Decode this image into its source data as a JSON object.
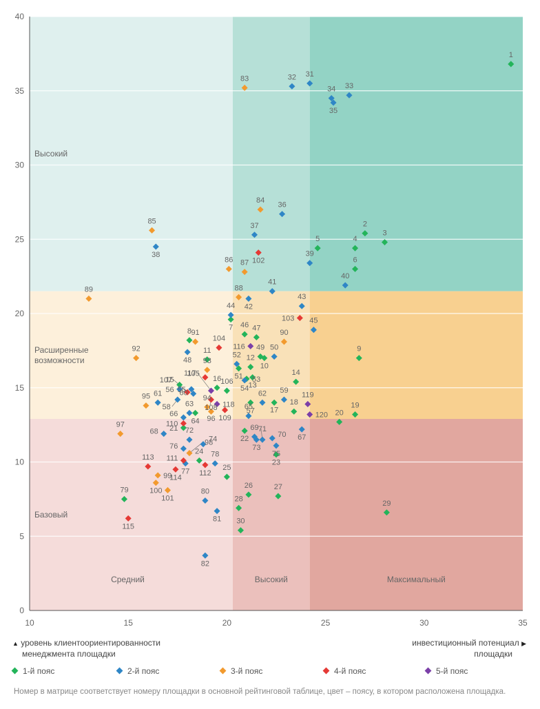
{
  "chart_data": {
    "type": "scatter",
    "x_axis": {
      "min": 10,
      "max": 35,
      "ticks": [
        10,
        15,
        20,
        25,
        30,
        35
      ]
    },
    "y_axis": {
      "min": 0,
      "max": 40,
      "ticks": [
        0,
        5,
        10,
        15,
        20,
        25,
        30,
        35,
        40
      ]
    },
    "x_bands": [
      20.3,
      24.2
    ],
    "y_bands": [
      12.9,
      21.5
    ],
    "zone_colors": {
      "r0": [
        "#dff0ee",
        "#b6e0d7",
        "#93d3c5"
      ],
      "r1": [
        "#fdf0db",
        "#f9e1b8",
        "#f8d090"
      ],
      "r2": [
        "#f5dcda",
        "#ebc0bc",
        "#e1a79f"
      ]
    },
    "row_labels": [
      {
        "text": "Высокий"
      },
      {
        "text": "Расширенные возможности"
      },
      {
        "text": "Базовый"
      }
    ],
    "column_labels": [
      "Средний",
      "Высокий",
      "Максимальный"
    ],
    "x_label": "инвестиционный потенциал площадки",
    "y_label": "уровень клиентоориентированности менеджмента площадки",
    "series": [
      {
        "name": "1-й пояс",
        "color": "#23b45a",
        "points": [
          {
            "id": "1",
            "x": 34.4,
            "y": 36.8
          },
          {
            "id": "2",
            "x": 27.0,
            "y": 25.4
          },
          {
            "id": "3",
            "x": 28.0,
            "y": 24.8
          },
          {
            "id": "4",
            "x": 26.5,
            "y": 24.4
          },
          {
            "id": "5",
            "x": 24.6,
            "y": 24.4
          },
          {
            "id": "6",
            "x": 26.5,
            "y": 23.0
          },
          {
            "id": "7",
            "x": 20.2,
            "y": 19.6
          },
          {
            "id": "8",
            "x": 18.1,
            "y": 18.2
          },
          {
            "id": "9",
            "x": 26.7,
            "y": 17.0
          },
          {
            "id": "10",
            "x": 21.9,
            "y": 17.0
          },
          {
            "id": "11",
            "x": 19.0,
            "y": 16.9
          },
          {
            "id": "12",
            "x": 21.2,
            "y": 16.4
          },
          {
            "id": "13",
            "x": 21.3,
            "y": 15.7
          },
          {
            "id": "14",
            "x": 23.5,
            "y": 15.4
          },
          {
            "id": "15",
            "x": 17.6,
            "y": 15.2
          },
          {
            "id": "16",
            "x": 19.5,
            "y": 15.0
          },
          {
            "id": "17",
            "x": 22.4,
            "y": 14.0
          },
          {
            "id": "18",
            "x": 23.4,
            "y": 13.4
          },
          {
            "id": "19",
            "x": 26.5,
            "y": 13.2
          },
          {
            "id": "20",
            "x": 25.7,
            "y": 12.7
          },
          {
            "id": "21",
            "x": 17.8,
            "y": 12.3
          },
          {
            "id": "22",
            "x": 20.9,
            "y": 12.1
          },
          {
            "id": "23",
            "x": 22.5,
            "y": 10.5
          },
          {
            "id": "24",
            "x": 18.6,
            "y": 10.1
          },
          {
            "id": "25",
            "x": 20.0,
            "y": 9.0
          },
          {
            "id": "26",
            "x": 21.1,
            "y": 7.8
          },
          {
            "id": "27",
            "x": 22.6,
            "y": 7.7
          },
          {
            "id": "28",
            "x": 20.6,
            "y": 6.9
          },
          {
            "id": "29",
            "x": 28.1,
            "y": 6.6
          },
          {
            "id": "30",
            "x": 20.7,
            "y": 5.4
          },
          {
            "id": "46",
            "x": 20.9,
            "y": 18.6
          },
          {
            "id": "47",
            "x": 21.5,
            "y": 18.4
          },
          {
            "id": "49",
            "x": 21.7,
            "y": 17.1
          },
          {
            "id": "51",
            "x": 20.6,
            "y": 16.3
          },
          {
            "id": "53",
            "x": 21.0,
            "y": 15.6
          },
          {
            "id": "57",
            "x": 21.2,
            "y": 14.0
          },
          {
            "id": "64",
            "x": 18.4,
            "y": 13.3
          },
          {
            "id": "79",
            "x": 14.8,
            "y": 7.5
          },
          {
            "id": "106",
            "x": 20.0,
            "y": 14.8
          }
        ]
      },
      {
        "name": "2-й пояс",
        "color": "#2f86c6",
        "points": [
          {
            "id": "31",
            "x": 24.2,
            "y": 35.5
          },
          {
            "id": "32",
            "x": 23.3,
            "y": 35.3
          },
          {
            "id": "33",
            "x": 26.2,
            "y": 34.7
          },
          {
            "id": "34",
            "x": 25.3,
            "y": 34.5
          },
          {
            "id": "35",
            "x": 25.4,
            "y": 34.2
          },
          {
            "id": "36",
            "x": 22.8,
            "y": 26.7
          },
          {
            "id": "37",
            "x": 21.4,
            "y": 25.3
          },
          {
            "id": "38",
            "x": 16.4,
            "y": 24.5
          },
          {
            "id": "39",
            "x": 24.2,
            "y": 23.4
          },
          {
            "id": "40",
            "x": 26.0,
            "y": 21.9
          },
          {
            "id": "41",
            "x": 22.3,
            "y": 21.5
          },
          {
            "id": "42",
            "x": 21.1,
            "y": 21.0
          },
          {
            "id": "43",
            "x": 23.8,
            "y": 20.5
          },
          {
            "id": "44",
            "x": 20.2,
            "y": 19.9
          },
          {
            "id": "45",
            "x": 24.4,
            "y": 18.9
          },
          {
            "id": "48",
            "x": 18.0,
            "y": 17.4
          },
          {
            "id": "50",
            "x": 22.4,
            "y": 17.1
          },
          {
            "id": "52",
            "x": 20.5,
            "y": 16.6
          },
          {
            "id": "54",
            "x": 20.9,
            "y": 15.5
          },
          {
            "id": "55",
            "x": 18.2,
            "y": 14.9
          },
          {
            "id": "56",
            "x": 17.6,
            "y": 14.9
          },
          {
            "id": "58",
            "x": 17.5,
            "y": 14.2
          },
          {
            "id": "59",
            "x": 22.9,
            "y": 14.2
          },
          {
            "id": "60",
            "x": 18.3,
            "y": 14.6
          },
          {
            "id": "61",
            "x": 16.5,
            "y": 14.0
          },
          {
            "id": "62",
            "x": 21.8,
            "y": 14.0
          },
          {
            "id": "63",
            "x": 18.1,
            "y": 13.3
          },
          {
            "id": "65",
            "x": 21.1,
            "y": 13.1
          },
          {
            "id": "66",
            "x": 17.8,
            "y": 13.0
          },
          {
            "id": "67",
            "x": 23.8,
            "y": 12.2
          },
          {
            "id": "68",
            "x": 16.8,
            "y": 11.9
          },
          {
            "id": "69",
            "x": 21.4,
            "y": 11.7
          },
          {
            "id": "70",
            "x": 22.3,
            "y": 11.6
          },
          {
            "id": "71",
            "x": 21.8,
            "y": 11.5
          },
          {
            "id": "72",
            "x": 18.1,
            "y": 11.5
          },
          {
            "id": "73",
            "x": 21.5,
            "y": 11.5
          },
          {
            "id": "74",
            "x": 18.8,
            "y": 11.2
          },
          {
            "id": "75",
            "x": 22.5,
            "y": 11.1
          },
          {
            "id": "76",
            "x": 17.8,
            "y": 10.9
          },
          {
            "id": "77",
            "x": 17.9,
            "y": 9.9
          },
          {
            "id": "78",
            "x": 19.4,
            "y": 9.9
          },
          {
            "id": "80",
            "x": 18.9,
            "y": 7.4
          },
          {
            "id": "81",
            "x": 19.5,
            "y": 6.7
          },
          {
            "id": "82",
            "x": 18.9,
            "y": 3.7
          }
        ]
      },
      {
        "name": "3-й пояс",
        "color": "#f29a2e",
        "points": [
          {
            "id": "83",
            "x": 20.9,
            "y": 35.2
          },
          {
            "id": "84",
            "x": 21.7,
            "y": 27.0
          },
          {
            "id": "85",
            "x": 16.2,
            "y": 25.6
          },
          {
            "id": "86",
            "x": 20.1,
            "y": 23.0
          },
          {
            "id": "87",
            "x": 20.9,
            "y": 22.8
          },
          {
            "id": "88",
            "x": 20.6,
            "y": 21.1
          },
          {
            "id": "89",
            "x": 13.0,
            "y": 21.0
          },
          {
            "id": "90",
            "x": 22.9,
            "y": 18.1
          },
          {
            "id": "91",
            "x": 18.4,
            "y": 18.1
          },
          {
            "id": "92",
            "x": 15.4,
            "y": 17.0
          },
          {
            "id": "93",
            "x": 19.0,
            "y": 16.2
          },
          {
            "id": "94",
            "x": 19.0,
            "y": 13.7
          },
          {
            "id": "95",
            "x": 15.9,
            "y": 13.8
          },
          {
            "id": "96",
            "x": 19.2,
            "y": 13.4
          },
          {
            "id": "97",
            "x": 14.6,
            "y": 11.9
          },
          {
            "id": "98",
            "x": 18.1,
            "y": 10.6
          },
          {
            "id": "99",
            "x": 16.5,
            "y": 9.1
          },
          {
            "id": "100",
            "x": 16.4,
            "y": 8.6
          },
          {
            "id": "101",
            "x": 17.0,
            "y": 8.1
          }
        ]
      },
      {
        "name": "4-й пояс",
        "color": "#e53935",
        "points": [
          {
            "id": "102",
            "x": 21.6,
            "y": 24.1
          },
          {
            "id": "103",
            "x": 23.7,
            "y": 19.7
          },
          {
            "id": "104",
            "x": 19.6,
            "y": 17.7
          },
          {
            "id": "105",
            "x": 18.9,
            "y": 15.7
          },
          {
            "id": "107",
            "x": 18.0,
            "y": 14.7
          },
          {
            "id": "108",
            "x": 19.2,
            "y": 14.2
          },
          {
            "id": "109",
            "x": 19.9,
            "y": 13.5
          },
          {
            "id": "110",
            "x": 17.8,
            "y": 12.6
          },
          {
            "id": "111",
            "x": 17.8,
            "y": 10.1
          },
          {
            "id": "112",
            "x": 18.9,
            "y": 9.8
          },
          {
            "id": "113",
            "x": 16.0,
            "y": 9.7
          },
          {
            "id": "114",
            "x": 17.4,
            "y": 9.5
          },
          {
            "id": "115",
            "x": 15.0,
            "y": 6.2
          }
        ]
      },
      {
        "name": "5-й пояс",
        "color": "#7b3fa8",
        "points": [
          {
            "id": "116",
            "x": 21.2,
            "y": 17.8
          },
          {
            "id": "117",
            "x": 19.2,
            "y": 14.8
          },
          {
            "id": "118",
            "x": 19.5,
            "y": 13.9
          },
          {
            "id": "119",
            "x": 24.1,
            "y": 13.9
          },
          {
            "id": "120",
            "x": 24.2,
            "y": 13.2
          }
        ]
      }
    ]
  },
  "legend": [
    {
      "label": "1-й пояс",
      "color": "#23b45a"
    },
    {
      "label": "2-й пояс",
      "color": "#2f86c6"
    },
    {
      "label": "3-й пояс",
      "color": "#f29a2e"
    },
    {
      "label": "4-й пояс",
      "color": "#e53935"
    },
    {
      "label": "5-й пояс",
      "color": "#7b3fa8"
    }
  ],
  "axis_notes": {
    "left_line1": "уровень клиентоориентированности",
    "left_line2": "менеджмента площадки",
    "right_line1": "инвестиционный потенциал",
    "right_line2": "площадки",
    "up_arrow": "▲",
    "right_arrow": "▶"
  },
  "footnote": "Номер в матрице соответствует номеру площадки в основной рейтинговой таблице, цвет – поясу, в котором расположена площадка."
}
